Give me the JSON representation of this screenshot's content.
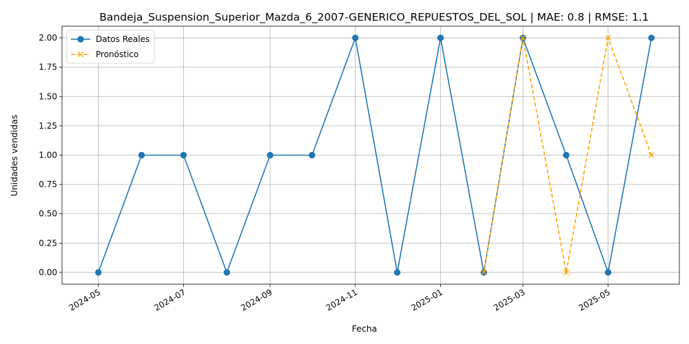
{
  "chart_data": {
    "type": "line",
    "title": "Bandeja_Suspension_Superior_Mazda_6_2007-GENERICO_REPUESTOS_DEL_SOL | MAE: 0.8 | RMSE: 1.1",
    "xlabel": "Fecha",
    "ylabel": "Unidades vendidas",
    "x_axis": "date",
    "xlim": [
      "2024-04-05",
      "2025-06-21"
    ],
    "ylim": [
      -0.1,
      2.1
    ],
    "x_ticks": [
      "2024-05-01",
      "2024-07-01",
      "2024-09-01",
      "2024-11-01",
      "2025-01-01",
      "2025-03-01",
      "2025-05-01"
    ],
    "x_tick_labels": [
      "2024-05",
      "2024-07",
      "2024-09",
      "2024-11",
      "2025-01",
      "2025-03",
      "2025-05"
    ],
    "y_ticks": [
      0,
      0.25,
      0.5,
      0.75,
      1,
      1.25,
      1.5,
      1.75,
      2
    ],
    "y_tick_labels": [
      "0.00",
      "0.25",
      "0.50",
      "0.75",
      "1.00",
      "1.25",
      "1.50",
      "1.75",
      "2.00"
    ],
    "grid": true,
    "legend_position": "upper-left",
    "series": [
      {
        "name": "Datos Reales",
        "color": "#1f77b4",
        "line_style": "solid",
        "marker": "circle",
        "x": [
          "2024-05-01",
          "2024-06-01",
          "2024-07-01",
          "2024-08-01",
          "2024-09-01",
          "2024-10-01",
          "2024-11-01",
          "2024-12-01",
          "2025-01-01",
          "2025-02-01",
          "2025-03-01",
          "2025-04-01",
          "2025-05-01",
          "2025-06-01"
        ],
        "values": [
          0,
          1,
          1,
          0,
          1,
          1,
          2,
          0,
          2,
          0,
          2,
          1,
          0,
          2
        ]
      },
      {
        "name": "Pronóstico",
        "color": "#ffa500",
        "line_style": "dashed",
        "marker": "x",
        "x": [
          "2025-02-01",
          "2025-03-01",
          "2025-04-01",
          "2025-05-01",
          "2025-06-01"
        ],
        "values": [
          0,
          2,
          0,
          2,
          1
        ]
      }
    ]
  }
}
